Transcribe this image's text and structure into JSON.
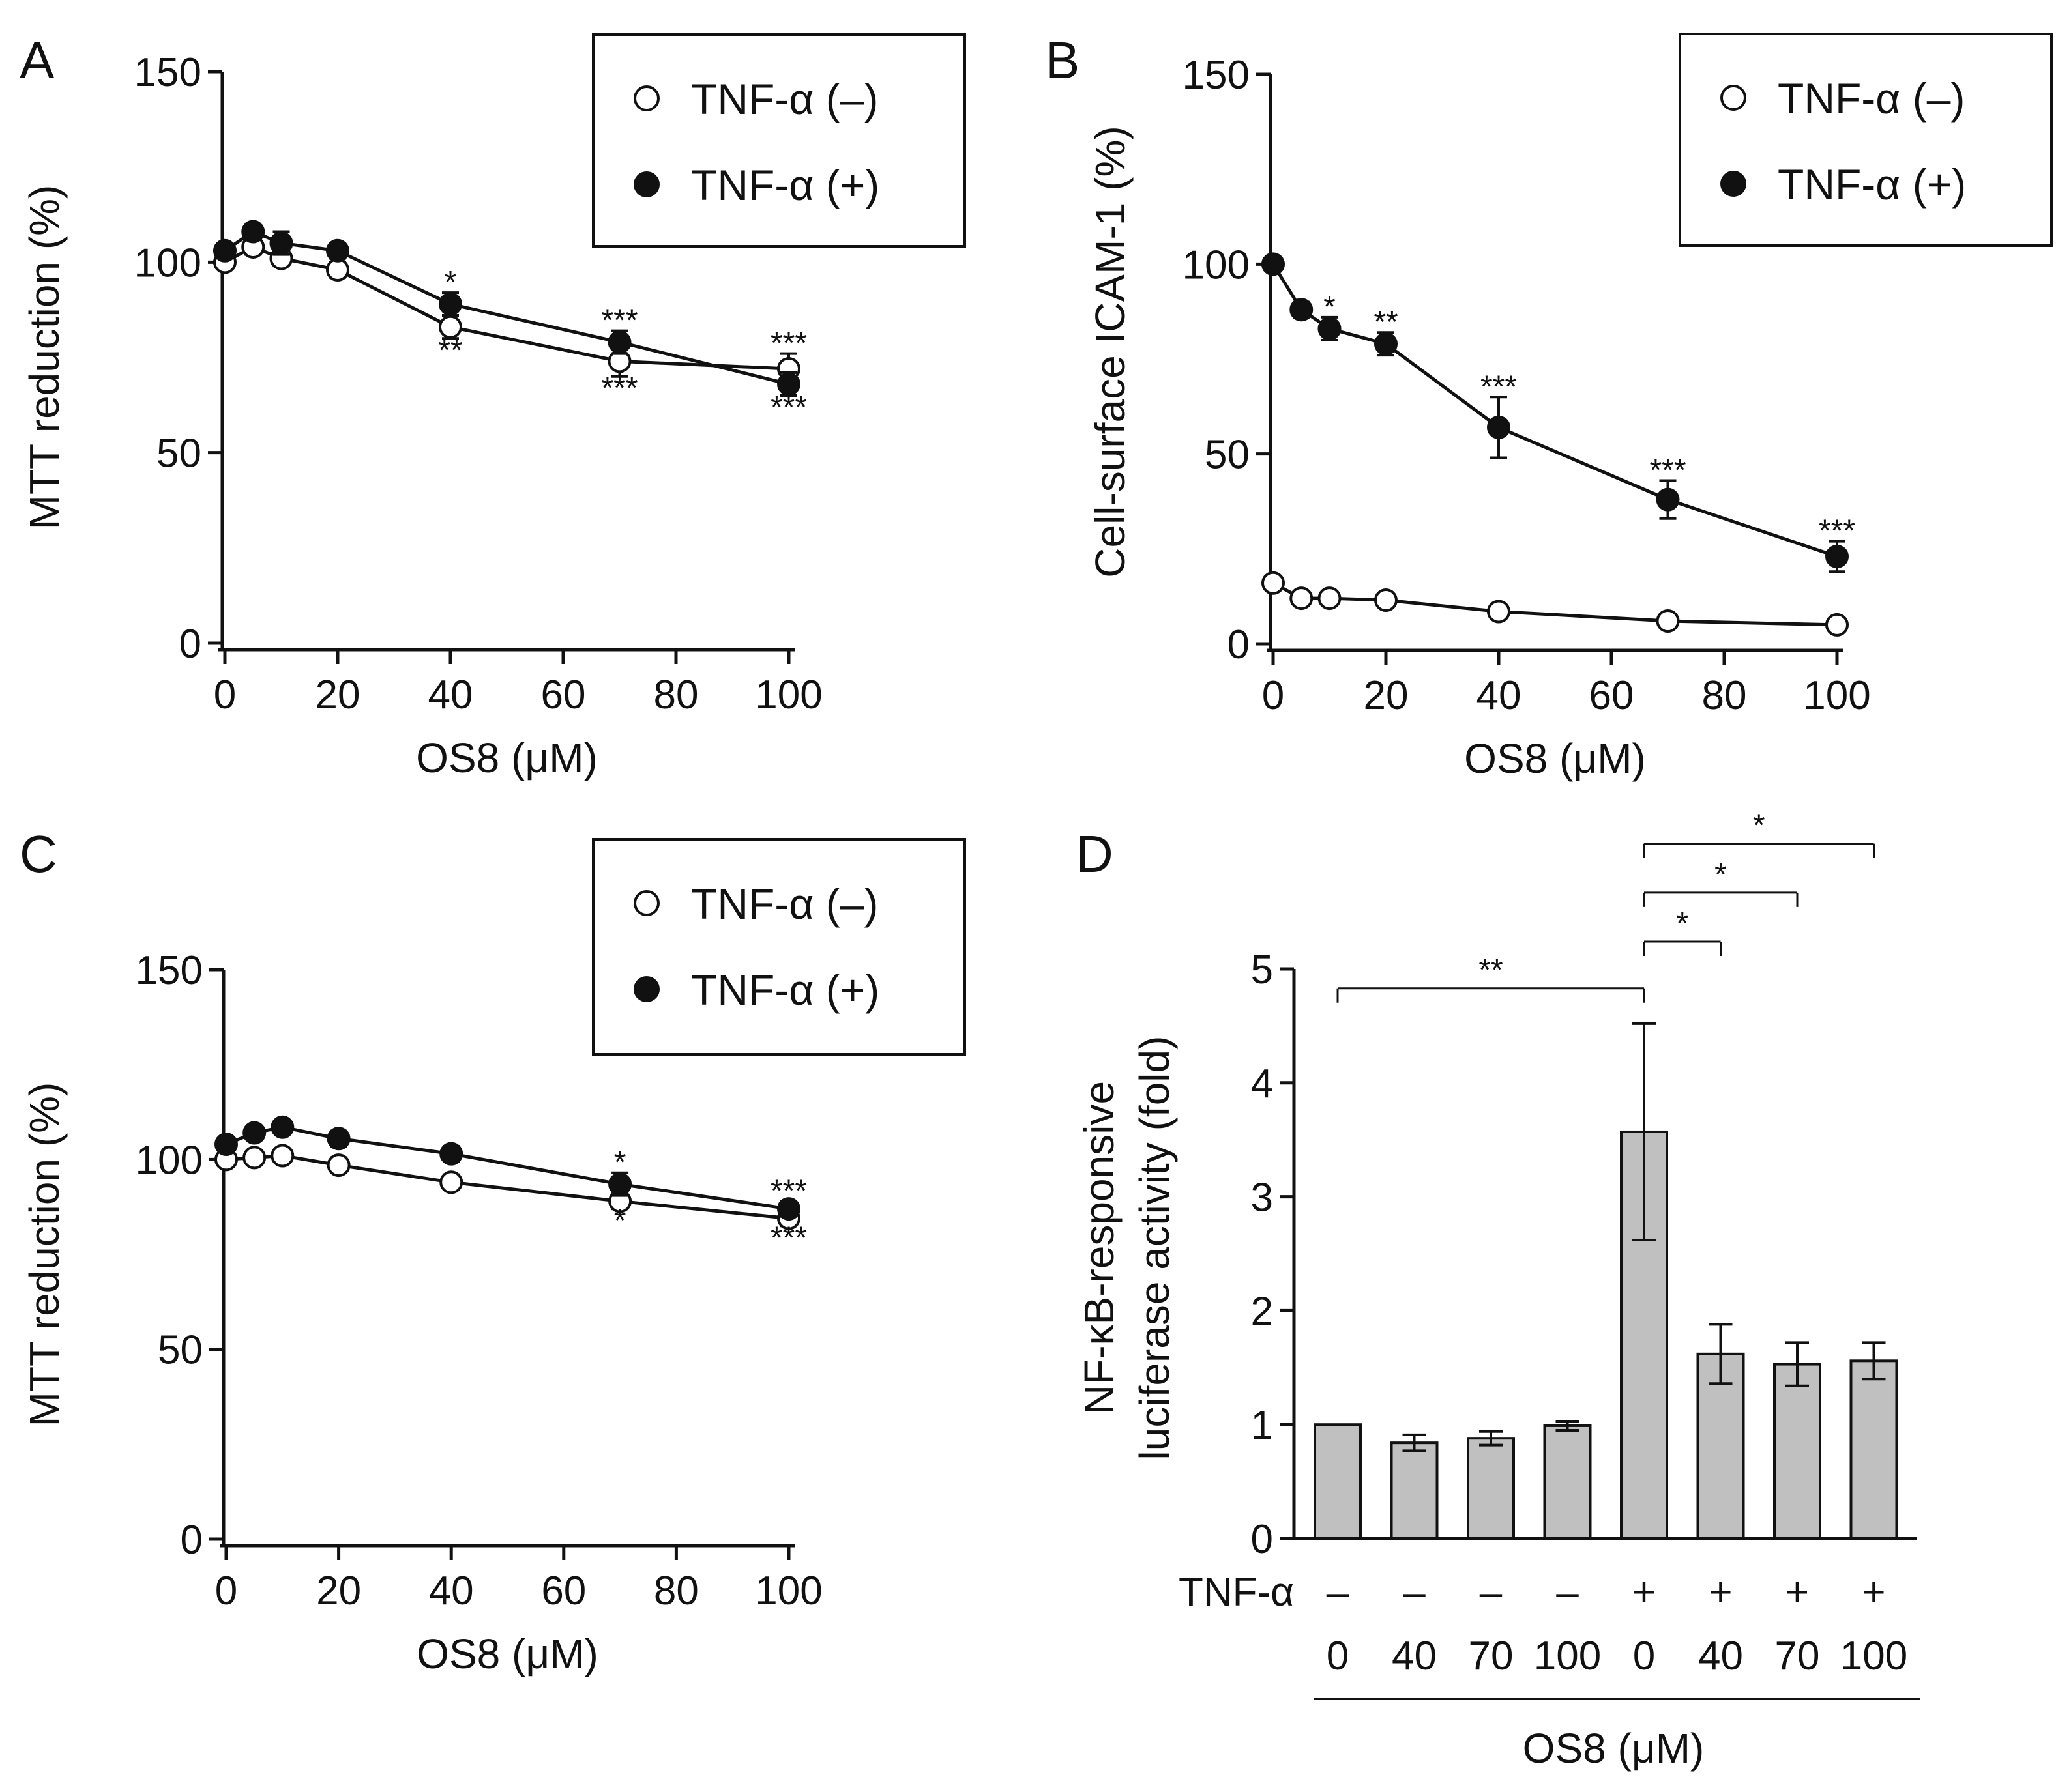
{
  "figure": {
    "colors": {
      "ink": "#111111",
      "open_fill": "#ffffff",
      "closed_fill": "#111111",
      "bar_fill": "#c0c0c0"
    }
  },
  "chart_data": [
    {
      "panel": "A",
      "type": "line",
      "title": "",
      "xlabel": "OS8 (μM)",
      "ylabel": "MTT reduction (%)",
      "xlim": [
        0,
        100
      ],
      "ylim": [
        0,
        150
      ],
      "xticks": [
        0,
        20,
        40,
        60,
        80,
        100
      ],
      "yticks": [
        0,
        50,
        100,
        150
      ],
      "legend_position": "top-right",
      "x": [
        0,
        5,
        10,
        20,
        40,
        70,
        100
      ],
      "series": [
        {
          "name": "TNF-α (–)",
          "marker": "open-circle",
          "values": [
            100,
            104,
            101,
            98,
            83,
            74,
            72
          ],
          "errors": [
            1,
            2,
            2,
            2,
            3,
            4,
            4
          ]
        },
        {
          "name": "TNF-α (+)",
          "marker": "filled-circle",
          "values": [
            103,
            108,
            105,
            103,
            89,
            79,
            68
          ],
          "errors": [
            2,
            2,
            3,
            2,
            3,
            3,
            3
          ]
        }
      ],
      "annotations": [
        {
          "x": 40,
          "y": 92,
          "text": "*",
          "pos": "above"
        },
        {
          "x": 40,
          "y": 80,
          "text": "**",
          "pos": "below"
        },
        {
          "x": 70,
          "y": 82,
          "text": "***",
          "pos": "above"
        },
        {
          "x": 70,
          "y": 70,
          "text": "***",
          "pos": "below"
        },
        {
          "x": 100,
          "y": 76,
          "text": "***",
          "pos": "above"
        },
        {
          "x": 100,
          "y": 65,
          "text": "***",
          "pos": "below"
        }
      ]
    },
    {
      "panel": "B",
      "type": "line",
      "title": "",
      "xlabel": "OS8 (μM)",
      "ylabel": "Cell-surface ICAM-1  (%)",
      "xlim": [
        0,
        100
      ],
      "ylim": [
        0,
        150
      ],
      "xticks": [
        0,
        20,
        40,
        60,
        80,
        100
      ],
      "yticks": [
        0,
        50,
        100,
        150
      ],
      "legend_position": "top-right",
      "x": [
        0,
        5,
        10,
        20,
        40,
        70,
        100
      ],
      "series": [
        {
          "name": "TNF-α (–)",
          "marker": "open-circle",
          "values": [
            16,
            12,
            12,
            11.5,
            8.5,
            6,
            5
          ],
          "errors": [
            1,
            1,
            1,
            1,
            1,
            1,
            1
          ]
        },
        {
          "name": "TNF-α (+)",
          "marker": "filled-circle",
          "values": [
            100,
            88,
            83,
            79,
            57,
            38,
            23
          ],
          "errors": [
            1,
            2,
            3,
            3,
            8,
            5,
            4
          ]
        }
      ],
      "annotations": [
        {
          "x": 10,
          "y": 86,
          "text": "*",
          "pos": "above"
        },
        {
          "x": 20,
          "y": 82,
          "text": "**",
          "pos": "above"
        },
        {
          "x": 40,
          "y": 65,
          "text": "***",
          "pos": "above"
        },
        {
          "x": 70,
          "y": 43,
          "text": "***",
          "pos": "above"
        },
        {
          "x": 100,
          "y": 27,
          "text": "***",
          "pos": "above"
        }
      ]
    },
    {
      "panel": "C",
      "type": "line",
      "title": "",
      "xlabel": "OS8 (μM)",
      "ylabel": "MTT reduction (%)",
      "xlim": [
        0,
        100
      ],
      "ylim": [
        0,
        150
      ],
      "xticks": [
        0,
        20,
        40,
        60,
        80,
        100
      ],
      "yticks": [
        0,
        50,
        100,
        150
      ],
      "legend_position": "top-right",
      "x": [
        0,
        5,
        10,
        20,
        40,
        70,
        100
      ],
      "series": [
        {
          "name": "TNF-α (–)",
          "marker": "open-circle",
          "values": [
            100,
            100.5,
            101,
            98.5,
            94,
            89,
            84.5
          ],
          "errors": [
            1,
            1,
            1,
            2,
            2,
            2,
            2
          ]
        },
        {
          "name": "TNF-α (+)",
          "marker": "filled-circle",
          "values": [
            104,
            107,
            108.5,
            105.5,
            101.5,
            93.5,
            87
          ],
          "errors": [
            1,
            1,
            1,
            2,
            2,
            3,
            2
          ]
        }
      ],
      "annotations": [
        {
          "x": 70,
          "y": 96.5,
          "text": "*",
          "pos": "above"
        },
        {
          "x": 70,
          "y": 87,
          "text": "*",
          "pos": "below"
        },
        {
          "x": 100,
          "y": 89,
          "text": "***",
          "pos": "above"
        },
        {
          "x": 100,
          "y": 82.5,
          "text": "***",
          "pos": "below"
        }
      ]
    },
    {
      "panel": "D",
      "type": "bar",
      "title": "",
      "xlabel": "OS8 (μM)",
      "ylabel": [
        "NF-κB-responsive",
        "luciferase activity (fold)"
      ],
      "ylim": [
        0,
        5
      ],
      "yticks": [
        0,
        1,
        2,
        3,
        4,
        5
      ],
      "row_labels": {
        "tnf": "TNF-α"
      },
      "categories": [
        {
          "tnf": "–",
          "os8": "0"
        },
        {
          "tnf": "–",
          "os8": "40"
        },
        {
          "tnf": "–",
          "os8": "70"
        },
        {
          "tnf": "–",
          "os8": "100"
        },
        {
          "tnf": "+",
          "os8": "0"
        },
        {
          "tnf": "+",
          "os8": "40"
        },
        {
          "tnf": "+",
          "os8": "70"
        },
        {
          "tnf": "+",
          "os8": "100"
        }
      ],
      "values": [
        1.0,
        0.84,
        0.88,
        0.99,
        3.57,
        1.62,
        1.53,
        1.56
      ],
      "errors": [
        0,
        0.07,
        0.06,
        0.04,
        0.95,
        0.26,
        0.19,
        0.16
      ],
      "brackets": [
        {
          "from": 0,
          "to": 4,
          "y": 4.83,
          "text": "**"
        },
        {
          "from": 4,
          "to": 5,
          "y": 5.24,
          "text": "*"
        },
        {
          "from": 4,
          "to": 6,
          "y": 5.67,
          "text": "*"
        },
        {
          "from": 4,
          "to": 7,
          "y": 6.1,
          "text": "*"
        }
      ]
    }
  ]
}
